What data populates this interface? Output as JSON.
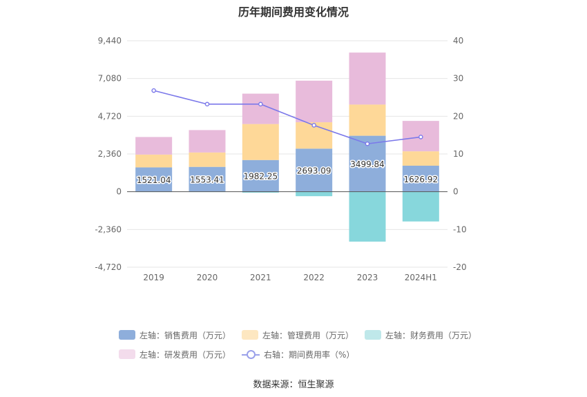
{
  "chart_data": {
    "type": "bar",
    "title": "历年期间费用变化情况",
    "categories": [
      "2019",
      "2020",
      "2021",
      "2022",
      "2023",
      "2024H1"
    ],
    "left_axis": {
      "min": -4720,
      "max": 9440,
      "ticks": [
        "-4,720",
        "-2,360",
        "0",
        "2,360",
        "4,720",
        "7,080",
        "9,440"
      ],
      "tick_values": [
        -4720,
        -2360,
        0,
        2360,
        4720,
        7080,
        9440
      ]
    },
    "right_axis": {
      "min": -20,
      "max": 40,
      "ticks": [
        "-20",
        "-10",
        "0",
        "10",
        "20",
        "30",
        "40"
      ],
      "tick_values": [
        -20,
        -10,
        0,
        10,
        20,
        30,
        40
      ]
    },
    "series": [
      {
        "name": "左轴：销售费用（万元）",
        "axis": "left",
        "kind": "bar",
        "color": "#8eaedb",
        "values": [
          1521.04,
          1553.41,
          1982.25,
          2693.09,
          3499.84,
          1626.92
        ],
        "labels": [
          "1521.04",
          "1553.41",
          "1982.25",
          "2693.09",
          "3499.84",
          "1626.92"
        ]
      },
      {
        "name": "左轴：管理费用（万元）",
        "axis": "left",
        "kind": "bar",
        "color": "#fed898",
        "values": [
          800,
          900,
          2250,
          1650,
          1950,
          900
        ]
      },
      {
        "name": "左轴：财务费用（万元）",
        "axis": "left",
        "kind": "bar",
        "color": "#87d7dc",
        "values": [
          -20,
          -20,
          -60,
          -280,
          -3120,
          -1860
        ]
      },
      {
        "name": "左轴：研发费用（万元）",
        "axis": "left",
        "kind": "bar",
        "color": "#e8bbdb",
        "values": [
          1100,
          1400,
          1900,
          2600,
          3250,
          1900
        ]
      },
      {
        "name": "右轴：期间费用率（%）",
        "axis": "right",
        "kind": "line",
        "color": "#7b78ea",
        "values": [
          26.8,
          23.2,
          23.2,
          17.6,
          12.7,
          14.5
        ]
      }
    ],
    "legend": [
      {
        "label": "左轴：销售费用（万元）",
        "color": "#8eaedb",
        "kind": "bar"
      },
      {
        "label": "左轴：管理费用（万元）",
        "color": "#fde7c1",
        "kind": "bar"
      },
      {
        "label": "左轴：财务费用（万元）",
        "color": "#bfe8ea",
        "kind": "bar"
      },
      {
        "label": "左轴：研发费用（万元）",
        "color": "#f3dcec",
        "kind": "bar"
      },
      {
        "label": "右轴：期间费用率（%）",
        "color": "#9aa0ea",
        "kind": "line"
      }
    ],
    "legend_position": "bottom",
    "grid": true,
    "source": "数据来源：恒生聚源"
  }
}
